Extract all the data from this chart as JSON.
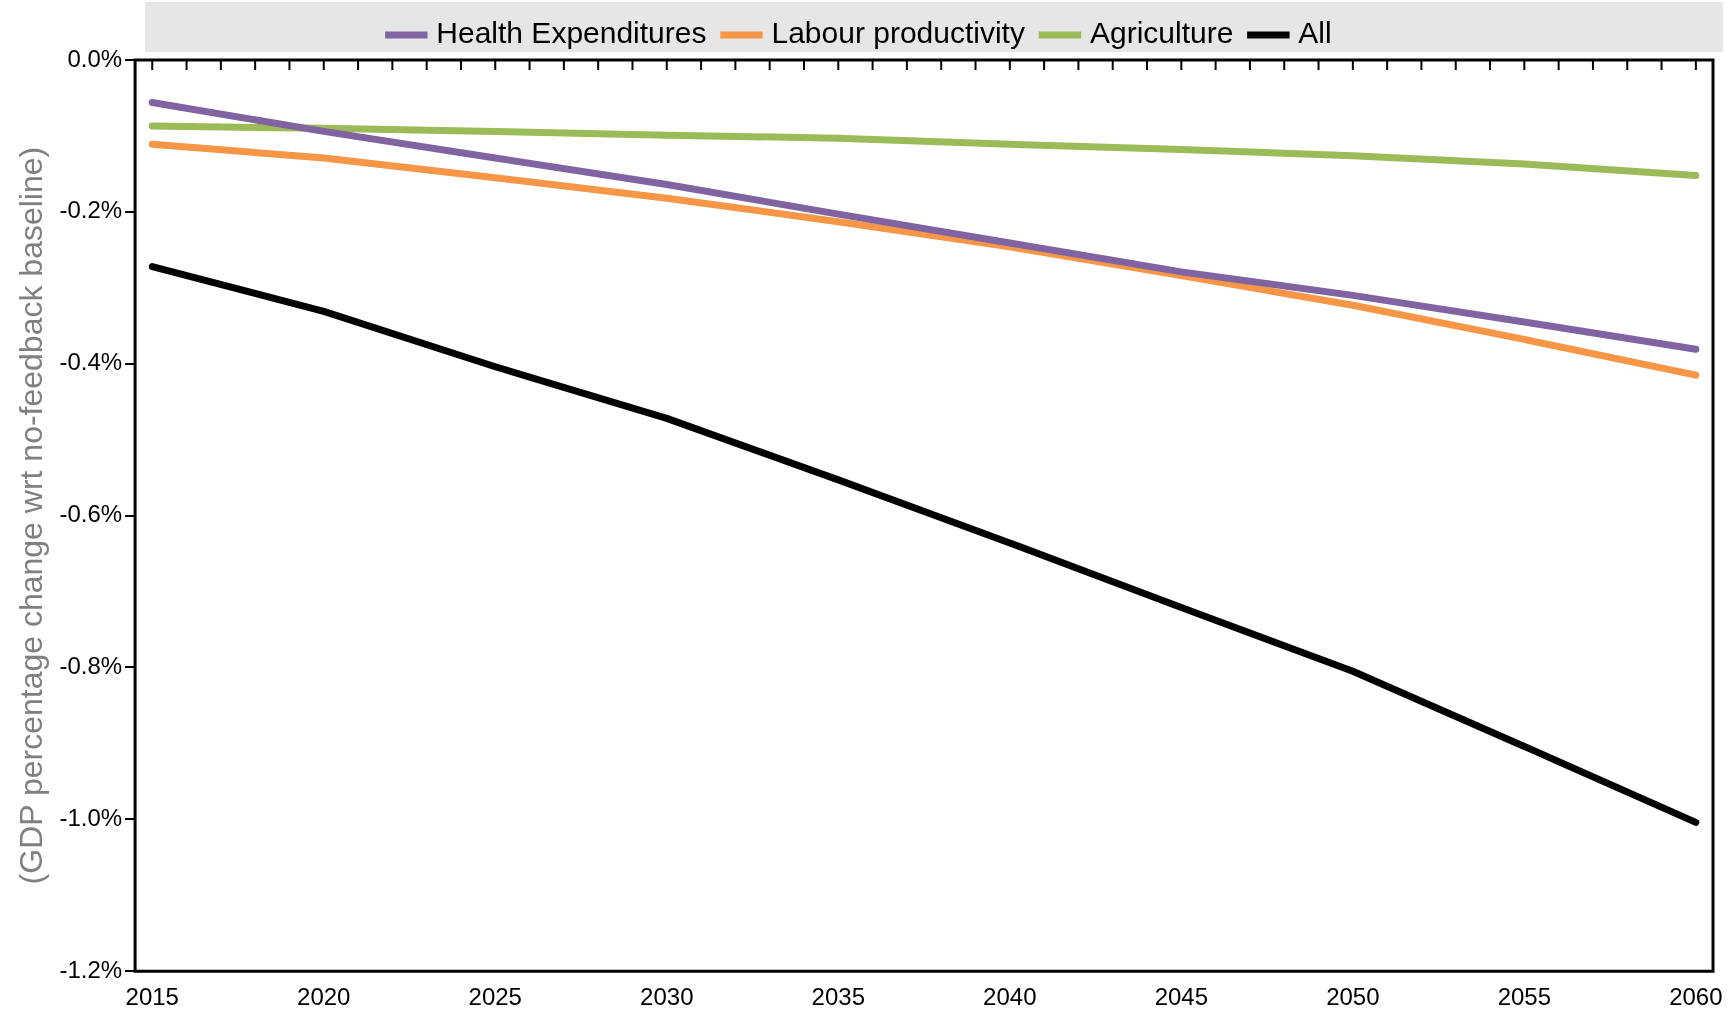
{
  "chart_data": {
    "type": "line",
    "ylabel": "(GDP percentage change wrt no-feedback baseline)",
    "x": [
      2015,
      2020,
      2025,
      2030,
      2035,
      2040,
      2045,
      2050,
      2055,
      2060
    ],
    "series": [
      {
        "name": "Health Expenditures",
        "color": "#8064a2",
        "values": [
          -0.056,
          -0.094,
          -0.129,
          -0.164,
          -0.203,
          -0.241,
          -0.279,
          -0.31,
          -0.345,
          -0.381
        ]
      },
      {
        "name": "Labour productivity",
        "color": "#f79646",
        "values": [
          -0.111,
          -0.129,
          -0.155,
          -0.182,
          -0.213,
          -0.246,
          -0.284,
          -0.323,
          -0.368,
          -0.415
        ]
      },
      {
        "name": "Agriculture",
        "color": "#9bbb59",
        "values": [
          -0.087,
          -0.09,
          -0.094,
          -0.099,
          -0.103,
          -0.111,
          -0.118,
          -0.126,
          -0.137,
          -0.152
        ]
      },
      {
        "name": "All",
        "color": "#000000",
        "values": [
          -0.272,
          -0.331,
          -0.404,
          -0.472,
          -0.553,
          -0.636,
          -0.721,
          -0.805,
          -0.904,
          -1.004
        ]
      }
    ],
    "xlim": [
      2014.5,
      2060.5
    ],
    "xticks": [
      2015,
      {
        "value": 2016,
        "label": null
      },
      {
        "value": 2017,
        "label": null
      },
      {
        "value": 2018,
        "label": null
      },
      {
        "value": 2019,
        "label": null
      },
      2020,
      {
        "value": 2021,
        "label": null
      },
      {
        "value": 2022,
        "label": null
      },
      {
        "value": 2023,
        "label": null
      },
      {
        "value": 2024,
        "label": null
      },
      2025,
      {
        "value": 2026,
        "label": null
      },
      {
        "value": 2027,
        "label": null
      },
      {
        "value": 2028,
        "label": null
      },
      {
        "value": 2029,
        "label": null
      },
      2030,
      {
        "value": 2031,
        "label": null
      },
      {
        "value": 2032,
        "label": null
      },
      {
        "value": 2033,
        "label": null
      },
      {
        "value": 2034,
        "label": null
      },
      2035,
      {
        "value": 2036,
        "label": null
      },
      {
        "value": 2037,
        "label": null
      },
      {
        "value": 2038,
        "label": null
      },
      {
        "value": 2039,
        "label": null
      },
      2040,
      {
        "value": 2041,
        "label": null
      },
      {
        "value": 2042,
        "label": null
      },
      {
        "value": 2043,
        "label": null
      },
      {
        "value": 2044,
        "label": null
      },
      2045,
      {
        "value": 2046,
        "label": null
      },
      {
        "value": 2047,
        "label": null
      },
      {
        "value": 2048,
        "label": null
      },
      {
        "value": 2049,
        "label": null
      },
      2050,
      {
        "value": 2051,
        "label": null
      },
      {
        "value": 2052,
        "label": null
      },
      {
        "value": 2053,
        "label": null
      },
      {
        "value": 2054,
        "label": null
      },
      2055,
      {
        "value": 2056,
        "label": null
      },
      {
        "value": 2057,
        "label": null
      },
      {
        "value": 2058,
        "label": null
      },
      {
        "value": 2059,
        "label": null
      },
      2060
    ],
    "ylim": [
      -1.2,
      0
    ],
    "yticks": [
      {
        "value": 0,
        "label": "0.0%"
      },
      {
        "value": -0.2,
        "label": "-0.2%"
      },
      {
        "value": -0.4,
        "label": "-0.4%"
      },
      {
        "value": -0.6,
        "label": "-0.6%"
      },
      {
        "value": -0.8,
        "label": "-0.8%"
      },
      {
        "value": -1.0,
        "label": "-1.0%"
      },
      {
        "value": -1.2,
        "label": "-1.2%"
      }
    ],
    "grid": false,
    "legend": "top",
    "marker": "none",
    "line_style": "solid"
  }
}
